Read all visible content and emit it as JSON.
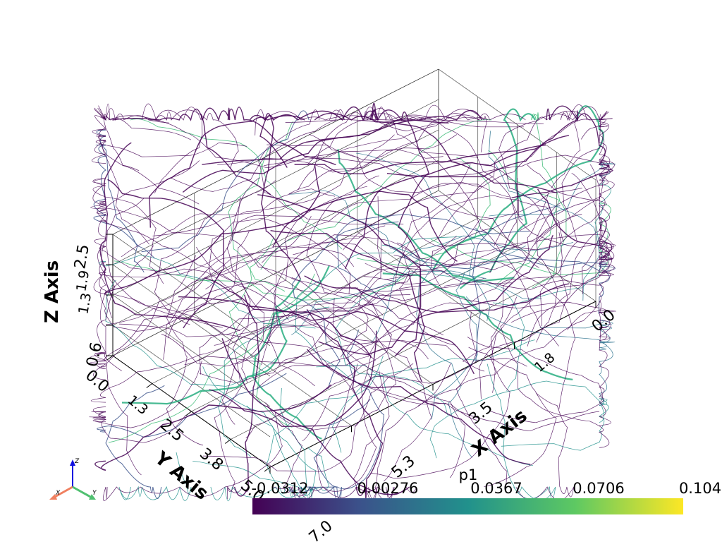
{
  "scene": {
    "x_axis": {
      "title": "X Axis",
      "ticks": [
        "0.0",
        "1.8",
        "3.5",
        "5.3",
        "7.0"
      ]
    },
    "y_axis": {
      "title": "Y Axis",
      "ticks": [
        "0.0",
        "1.3",
        "2.5",
        "3.8",
        "5.0"
      ]
    },
    "z_axis": {
      "title": "Z Axis",
      "ticks": [
        "0.0",
        "0.6",
        "1.3",
        "1.9",
        "2.5"
      ]
    }
  },
  "scalar_bar": {
    "title": "p1",
    "labels": [
      "-0.0312",
      "0.00276",
      "0.0367",
      "0.0706",
      "0.104"
    ],
    "colormap": "viridis",
    "colors": [
      "#440154",
      "#3b528b",
      "#21918c",
      "#5ec962",
      "#fde725"
    ]
  },
  "orientation_widget": {
    "labels": {
      "x": "X",
      "y": "Y",
      "z": "Z"
    },
    "colors": {
      "x": "#f08060",
      "y": "#50c070",
      "z": "#1010e0"
    }
  },
  "streamline_colors": {
    "dominant": "#440154",
    "secondary": [
      "#3b528b",
      "#2c728e",
      "#21918c",
      "#28ae80",
      "#3cbb75"
    ]
  }
}
